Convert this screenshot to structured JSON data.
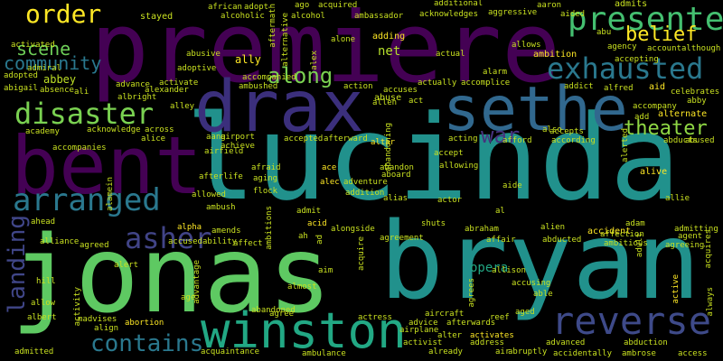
{
  "background": "#000000",
  "palette": [
    "#440154",
    "#482475",
    "#414487",
    "#355f8d",
    "#2a788e",
    "#21918c",
    "#22a884",
    "#44bf70",
    "#7ad151",
    "#bddf26",
    "#fde725"
  ],
  "words": [
    {
      "text": "premiere",
      "color": "#440154"
    },
    {
      "text": "lucinda",
      "color": "#21918c"
    },
    {
      "text": "jonas",
      "color": "#5ec962"
    },
    {
      "text": "bryan",
      "color": "#21918c"
    },
    {
      "text": "bent",
      "color": "#440154"
    },
    {
      "text": "drax",
      "color": "#3b2f7c"
    },
    {
      "text": "sethe",
      "color": "#31688e"
    },
    {
      "text": "winston",
      "color": "#22a884"
    },
    {
      "text": "disaster",
      "color": "#7ad151"
    },
    {
      "text": "presented",
      "color": "#44bf70"
    },
    {
      "text": "exhausted",
      "color": "#2a788e"
    },
    {
      "text": "reverse",
      "color": "#3e4a89"
    },
    {
      "text": "arranged",
      "color": "#2a788e"
    },
    {
      "text": "contains",
      "color": "#2a788e"
    },
    {
      "text": "asher",
      "color": "#414487"
    },
    {
      "text": "order",
      "color": "#fde725"
    },
    {
      "text": "belief",
      "color": "#fde725"
    },
    {
      "text": "scene",
      "color": "#6ece58"
    },
    {
      "text": "community",
      "color": "#2a788e"
    },
    {
      "text": "theater",
      "color": "#8fd744"
    },
    {
      "text": "landing",
      "color": "#404688"
    },
    {
      "text": "war",
      "color": "#46327e"
    },
    {
      "text": "along",
      "color": "#7ad151"
    },
    {
      "text": "opera",
      "color": "#22a884"
    },
    {
      "text": "net",
      "color": "#b5de2b"
    },
    {
      "text": "abbey",
      "color": "#bddf26"
    },
    {
      "text": "stayed",
      "color": "#c8e020"
    },
    {
      "text": "african",
      "color": "#c8e020"
    },
    {
      "text": "adopt",
      "color": "#c8e020"
    },
    {
      "text": "alcoholic",
      "color": "#c8e020"
    },
    {
      "text": "alcohol",
      "color": "#c8e020"
    },
    {
      "text": "ambassador",
      "color": "#c8e020"
    },
    {
      "text": "acknowledges",
      "color": "#c8e020"
    },
    {
      "text": "aggressive",
      "color": "#c8e020"
    },
    {
      "text": "ago",
      "color": "#c8e020"
    },
    {
      "text": "acquired",
      "color": "#c8e020"
    },
    {
      "text": "additional",
      "color": "#c8e020"
    },
    {
      "text": "admits",
      "color": "#c8e020"
    },
    {
      "text": "aaron",
      "color": "#c8e020"
    },
    {
      "text": "aided",
      "color": "#c8e020"
    },
    {
      "text": "abu",
      "color": "#c8e020"
    },
    {
      "text": "agency",
      "color": "#c8e020"
    },
    {
      "text": "account",
      "color": "#c8e020"
    },
    {
      "text": "although",
      "color": "#c8e020"
    },
    {
      "text": "activated",
      "color": "#c8e020"
    },
    {
      "text": "admiral",
      "color": "#c8e020"
    },
    {
      "text": "abusive",
      "color": "#c8e020"
    },
    {
      "text": "ally",
      "color": "#fde725"
    },
    {
      "text": "alone",
      "color": "#c8e020"
    },
    {
      "text": "adding",
      "color": "#fde725"
    },
    {
      "text": "allows",
      "color": "#c8e020"
    },
    {
      "text": "ambition",
      "color": "#fde725"
    },
    {
      "text": "accepting",
      "color": "#c8e020"
    },
    {
      "text": "adopted",
      "color": "#c8e020"
    },
    {
      "text": "adoptive",
      "color": "#c8e020"
    },
    {
      "text": "actual",
      "color": "#c8e020"
    },
    {
      "text": "alarm",
      "color": "#c8e020"
    },
    {
      "text": "abigail",
      "color": "#c8e020"
    },
    {
      "text": "absence",
      "color": "#c8e020"
    },
    {
      "text": "ali",
      "color": "#c8e020"
    },
    {
      "text": "advance",
      "color": "#c8e020"
    },
    {
      "text": "activate",
      "color": "#c8e020"
    },
    {
      "text": "accompanied",
      "color": "#c8e020"
    },
    {
      "text": "ambushed",
      "color": "#c8e020"
    },
    {
      "text": "action",
      "color": "#c8e020"
    },
    {
      "text": "abuse",
      "color": "#c8e020"
    },
    {
      "text": "accuses",
      "color": "#c8e020"
    },
    {
      "text": "actually",
      "color": "#c8e020"
    },
    {
      "text": "accomplice",
      "color": "#c8e020"
    },
    {
      "text": "addict",
      "color": "#c8e020"
    },
    {
      "text": "alfred",
      "color": "#c8e020"
    },
    {
      "text": "aid",
      "color": "#fde725"
    },
    {
      "text": "celebrates",
      "color": "#c8e020"
    },
    {
      "text": "accompany",
      "color": "#c8e020"
    },
    {
      "text": "add",
      "color": "#c8e020"
    },
    {
      "text": "alternate",
      "color": "#fde725"
    },
    {
      "text": "albright",
      "color": "#c8e020"
    },
    {
      "text": "alley",
      "color": "#c8e020"
    },
    {
      "text": "allen",
      "color": "#c8e020"
    },
    {
      "text": "act",
      "color": "#c8e020"
    },
    {
      "text": "academy",
      "color": "#c8e020"
    },
    {
      "text": "acknowledge",
      "color": "#c8e020"
    },
    {
      "text": "across",
      "color": "#c8e020"
    },
    {
      "text": "alice",
      "color": "#c8e020"
    },
    {
      "text": "aang",
      "color": "#c8e020"
    },
    {
      "text": "airport",
      "color": "#c8e020"
    },
    {
      "text": "accepted",
      "color": "#c8e020"
    },
    {
      "text": "afterward",
      "color": "#c8e020"
    },
    {
      "text": "altar",
      "color": "#fde725"
    },
    {
      "text": "acting",
      "color": "#c8e020"
    },
    {
      "text": "afford",
      "color": "#c8e020"
    },
    {
      "text": "also",
      "color": "#c8e020"
    },
    {
      "text": "accepts",
      "color": "#c8e020"
    },
    {
      "text": "according",
      "color": "#c8e020"
    },
    {
      "text": "abducts",
      "color": "#c8e020"
    },
    {
      "text": "abused",
      "color": "#c8e020"
    },
    {
      "text": "accompanies",
      "color": "#c8e020"
    },
    {
      "text": "airfield",
      "color": "#c8e020"
    },
    {
      "text": "afterlife",
      "color": "#c8e020"
    },
    {
      "text": "aging",
      "color": "#c8e020"
    },
    {
      "text": "afraid",
      "color": "#c8e020"
    },
    {
      "text": "ace",
      "color": "#fde725"
    },
    {
      "text": "abandon",
      "color": "#c8e020"
    },
    {
      "text": "aboard",
      "color": "#c8e020"
    },
    {
      "text": "allowing",
      "color": "#c8e020"
    },
    {
      "text": "alive",
      "color": "#fde725"
    },
    {
      "text": "alec",
      "color": "#fde725"
    },
    {
      "text": "adventure",
      "color": "#c8e020"
    },
    {
      "text": "allowed",
      "color": "#c8e020"
    },
    {
      "text": "flock",
      "color": "#c8e020"
    },
    {
      "text": "addition",
      "color": "#c8e020"
    },
    {
      "text": "alias",
      "color": "#c8e020"
    },
    {
      "text": "aide",
      "color": "#c8e020"
    },
    {
      "text": "allie",
      "color": "#c8e020"
    },
    {
      "text": "ambush",
      "color": "#c8e020"
    },
    {
      "text": "ahead",
      "color": "#c8e020"
    },
    {
      "text": "alpha",
      "color": "#fde725"
    },
    {
      "text": "acid",
      "color": "#fde725"
    },
    {
      "text": "shuts",
      "color": "#c8e020"
    },
    {
      "text": "adam",
      "color": "#c8e020"
    },
    {
      "text": "accident",
      "color": "#fde725"
    },
    {
      "text": "affection",
      "color": "#c8e020"
    },
    {
      "text": "admitting",
      "color": "#c8e020"
    },
    {
      "text": "alliance",
      "color": "#c8e020"
    },
    {
      "text": "agreed",
      "color": "#c8e020"
    },
    {
      "text": "accused",
      "color": "#c8e020"
    },
    {
      "text": "ability",
      "color": "#c8e020"
    },
    {
      "text": "affect",
      "color": "#c8e020"
    },
    {
      "text": "alongside",
      "color": "#c8e020"
    },
    {
      "text": "agreement",
      "color": "#c8e020"
    },
    {
      "text": "abraham",
      "color": "#c8e020"
    },
    {
      "text": "affair",
      "color": "#c8e020"
    },
    {
      "text": "abducted",
      "color": "#c8e020"
    },
    {
      "text": "alien",
      "color": "#c8e020"
    },
    {
      "text": "ambitious",
      "color": "#c8e020"
    },
    {
      "text": "agent",
      "color": "#c8e020"
    },
    {
      "text": "agreeing",
      "color": "#c8e020"
    },
    {
      "text": "acquires",
      "color": "#c8e020"
    },
    {
      "text": "alert",
      "color": "#c8e020"
    },
    {
      "text": "hill",
      "color": "#c8e020"
    },
    {
      "text": "allison",
      "color": "#c8e020"
    },
    {
      "text": "accusing",
      "color": "#c8e020"
    },
    {
      "text": "able",
      "color": "#c8e020"
    },
    {
      "text": "age",
      "color": "#c8e020"
    },
    {
      "text": "almost",
      "color": "#c8e020"
    },
    {
      "text": "allow",
      "color": "#c8e020"
    },
    {
      "text": "albert",
      "color": "#c8e020"
    },
    {
      "text": "madvises",
      "color": "#c8e020"
    },
    {
      "text": "align",
      "color": "#c8e020"
    },
    {
      "text": "abortion",
      "color": "#fde725"
    },
    {
      "text": "agree",
      "color": "#c8e020"
    },
    {
      "text": "actress",
      "color": "#c8e020"
    },
    {
      "text": "aircraft",
      "color": "#c8e020"
    },
    {
      "text": "advice",
      "color": "#c8e020"
    },
    {
      "text": "afterwards",
      "color": "#c8e020"
    },
    {
      "text": "reef",
      "color": "#c8e020"
    },
    {
      "text": "aged",
      "color": "#c8e020"
    },
    {
      "text": "airplane",
      "color": "#c8e020"
    },
    {
      "text": "alter",
      "color": "#c8e020"
    },
    {
      "text": "activates",
      "color": "#fde725"
    },
    {
      "text": "activist",
      "color": "#c8e020"
    },
    {
      "text": "address",
      "color": "#c8e020"
    },
    {
      "text": "air",
      "color": "#c8e020"
    },
    {
      "text": "advanced",
      "color": "#c8e020"
    },
    {
      "text": "abduction",
      "color": "#c8e020"
    },
    {
      "text": "admitted",
      "color": "#c8e020"
    },
    {
      "text": "acquaintance",
      "color": "#c8e020"
    },
    {
      "text": "ambulance",
      "color": "#c8e020"
    },
    {
      "text": "already",
      "color": "#c8e020"
    },
    {
      "text": "abruptly",
      "color": "#c8e020"
    },
    {
      "text": "accidentally",
      "color": "#c8e020"
    },
    {
      "text": "ambrose",
      "color": "#c8e020"
    },
    {
      "text": "access",
      "color": "#c8e020"
    },
    {
      "text": "abandoned",
      "color": "#c8e020"
    },
    {
      "text": "abandoning",
      "color": "#c8e020"
    },
    {
      "text": "ambitions",
      "color": "#c8e020"
    },
    {
      "text": "alternative",
      "color": "#c8e020"
    },
    {
      "text": "aftermath",
      "color": "#c8e020"
    },
    {
      "text": "alex",
      "color": "#c8e020"
    },
    {
      "text": "admit",
      "color": "#c8e020"
    },
    {
      "text": "ah",
      "color": "#c8e020"
    },
    {
      "text": "al",
      "color": "#c8e020"
    },
    {
      "text": "acquire",
      "color": "#c8e020"
    },
    {
      "text": "aim",
      "color": "#c8e020"
    },
    {
      "text": "agrees",
      "color": "#c8e020"
    },
    {
      "text": "advantage",
      "color": "#c8e020"
    },
    {
      "text": "activity",
      "color": "#c8e020"
    },
    {
      "text": "alamein",
      "color": "#c8e020"
    },
    {
      "text": "alerted",
      "color": "#c8e020"
    },
    {
      "text": "adult",
      "color": "#c8e020"
    },
    {
      "text": "active",
      "color": "#fde725"
    },
    {
      "text": "always",
      "color": "#c8e020"
    },
    {
      "text": "accept",
      "color": "#c8e020"
    },
    {
      "text": "actor",
      "color": "#c8e020"
    },
    {
      "text": "amends",
      "color": "#c8e020"
    },
    {
      "text": "ad",
      "color": "#c8e020"
    },
    {
      "text": "alexander",
      "color": "#c8e020"
    },
    {
      "text": "abby",
      "color": "#c8e020"
    },
    {
      "text": "achieve",
      "color": "#c8e020"
    }
  ]
}
